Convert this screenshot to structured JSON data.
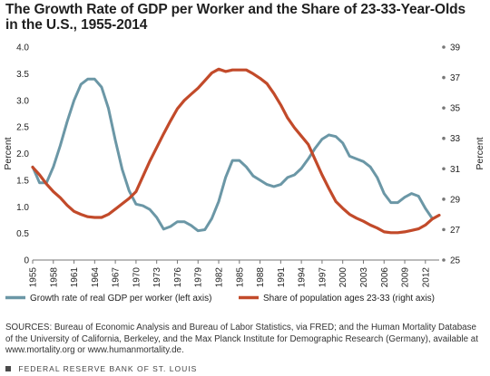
{
  "title_line1": "The Growth Rate of GDP per Worker and the Share of 23-33-Year-Olds",
  "title_line2": "in the U.S., 1955-2014",
  "sources": "SOURCES: Bureau of Economic Analysis and Bureau of Labor Statistics, via FRED; and the Human Mortality Database of the University of California, Berkeley, and the Max Planck Institute for Demographic Research (Germany), available at www.mortality.org or www.humanmortality.de.",
  "footer": "FEDERAL RESERVE BANK OF ST. LOUIS",
  "colors": {
    "left_series": "#6b97a6",
    "right_series": "#c24a2a",
    "axis": "#777777",
    "text": "#222222"
  },
  "chart_data": {
    "type": "line",
    "y_left_label": "Percent",
    "y_right_label": "Percent",
    "x_ticks": [
      "1955",
      "1958",
      "1961",
      "1964",
      "1967",
      "1970",
      "1973",
      "1976",
      "1979",
      "1982",
      "1985",
      "1988",
      "1991",
      "1994",
      "1997",
      "2000",
      "2003",
      "2006",
      "2009",
      "2012"
    ],
    "y_left_ticks": [
      "0",
      "0.5",
      "1.0",
      "1.5",
      "2.0",
      "2.5",
      "3.0",
      "3.5",
      "4.0"
    ],
    "y_right_ticks": [
      "25",
      "27",
      "29",
      "31",
      "33",
      "35",
      "37",
      "39"
    ],
    "x_range": [
      1955,
      2014
    ],
    "y_left_range": [
      0,
      4.0
    ],
    "y_right_range": [
      25,
      39
    ],
    "grid": false,
    "legend_position": "bottom",
    "series": [
      {
        "name": "Growth rate of real GDP per worker (left axis)",
        "axis": "left",
        "x": [
          1955,
          1956,
          1957,
          1958,
          1959,
          1960,
          1961,
          1962,
          1963,
          1964,
          1965,
          1966,
          1967,
          1968,
          1969,
          1970,
          1971,
          1972,
          1973,
          1974,
          1975,
          1976,
          1977,
          1978,
          1979,
          1980,
          1981,
          1982,
          1983,
          1984,
          1985,
          1986,
          1987,
          1988,
          1989,
          1990,
          1991,
          1992,
          1993,
          1994,
          1995,
          1996,
          1997,
          1998,
          1999,
          2000,
          2001,
          2002,
          2003,
          2004,
          2005,
          2006,
          2007,
          2008,
          2009,
          2010,
          2011,
          2012,
          2013
        ],
        "y": [
          1.75,
          1.45,
          1.45,
          1.75,
          2.15,
          2.6,
          3.0,
          3.3,
          3.4,
          3.4,
          3.25,
          2.85,
          2.25,
          1.7,
          1.3,
          1.05,
          1.02,
          0.95,
          0.8,
          0.58,
          0.63,
          0.72,
          0.72,
          0.65,
          0.55,
          0.57,
          0.78,
          1.1,
          1.55,
          1.87,
          1.87,
          1.75,
          1.58,
          1.5,
          1.42,
          1.38,
          1.42,
          1.55,
          1.6,
          1.72,
          1.9,
          2.1,
          2.27,
          2.35,
          2.32,
          2.2,
          1.95,
          1.9,
          1.85,
          1.75,
          1.55,
          1.25,
          1.08,
          1.08,
          1.18,
          1.25,
          1.2,
          0.97,
          0.78
        ]
      },
      {
        "name": "Share of population ages 23-33 (right axis)",
        "axis": "right",
        "x": [
          1955,
          1956,
          1957,
          1958,
          1959,
          1960,
          1961,
          1962,
          1963,
          1964,
          1965,
          1966,
          1967,
          1968,
          1969,
          1970,
          1971,
          1972,
          1973,
          1974,
          1975,
          1976,
          1977,
          1978,
          1979,
          1980,
          1981,
          1982,
          1983,
          1984,
          1985,
          1986,
          1987,
          1988,
          1989,
          1990,
          1991,
          1992,
          1993,
          1994,
          1995,
          1996,
          1997,
          1998,
          1999,
          2000,
          2001,
          2002,
          2003,
          2004,
          2005,
          2006,
          2007,
          2008,
          2009,
          2010,
          2011,
          2012,
          2013,
          2014
        ],
        "y": [
          31.1,
          30.6,
          30.0,
          29.5,
          29.1,
          28.6,
          28.2,
          28.0,
          27.85,
          27.8,
          27.8,
          28.0,
          28.35,
          28.7,
          29.05,
          29.5,
          30.5,
          31.5,
          32.4,
          33.3,
          34.15,
          34.95,
          35.5,
          35.9,
          36.3,
          36.8,
          37.3,
          37.55,
          37.4,
          37.5,
          37.5,
          37.5,
          37.25,
          36.95,
          36.6,
          35.95,
          35.2,
          34.35,
          33.7,
          33.15,
          32.6,
          31.6,
          30.6,
          29.7,
          28.85,
          28.4,
          28.0,
          27.75,
          27.55,
          27.3,
          27.1,
          26.85,
          26.8,
          26.8,
          26.85,
          26.95,
          27.05,
          27.3,
          27.7,
          27.95
        ]
      }
    ]
  }
}
